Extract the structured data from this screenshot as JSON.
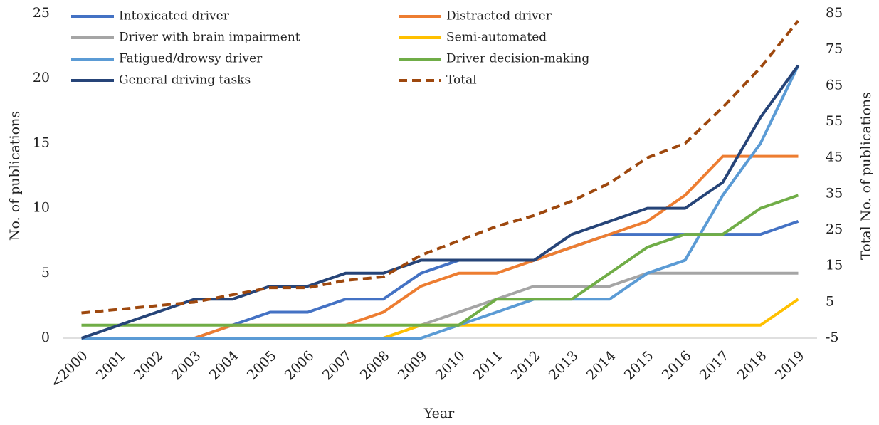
{
  "chart_data": {
    "type": "line",
    "x_label": "Year",
    "y_label": "No. of publications",
    "y2_label": "Total No. of publications",
    "categories": [
      "<2000",
      "2001",
      "2002",
      "2003",
      "2004",
      "2005",
      "2006",
      "2007",
      "2008",
      "2009",
      "2010",
      "2011",
      "2012",
      "2013",
      "2014",
      "2015",
      "2016",
      "2017",
      "2018",
      "2019"
    ],
    "ylim": [
      0,
      25
    ],
    "yticks": [
      0,
      5,
      10,
      15,
      20,
      25
    ],
    "y2lim": [
      -5,
      85
    ],
    "y2ticks": [
      -5,
      5,
      15,
      25,
      35,
      45,
      55,
      65,
      75,
      85
    ],
    "series": [
      {
        "name": "Intoxicated driver",
        "color": "#4472c4",
        "values": [
          0,
          0,
          0,
          0,
          1,
          2,
          2,
          3,
          3,
          5,
          6,
          6,
          6,
          7,
          8,
          8,
          8,
          8,
          8,
          9
        ]
      },
      {
        "name": "Distracted driver",
        "color": "#ed7d31",
        "values": [
          null,
          null,
          null,
          0,
          1,
          1,
          1,
          1,
          2,
          4,
          5,
          5,
          6,
          7,
          8,
          9,
          11,
          14,
          14,
          14
        ]
      },
      {
        "name": "Driver with brain impairment",
        "color": "#a5a5a5",
        "values": [
          0,
          0,
          0,
          0,
          0,
          0,
          0,
          0,
          0,
          1,
          2,
          3,
          4,
          4,
          4,
          5,
          5,
          5,
          5,
          5
        ]
      },
      {
        "name": "Semi-automated",
        "color": "#ffc000",
        "values": [
          null,
          null,
          null,
          null,
          null,
          null,
          null,
          null,
          0,
          1,
          1,
          1,
          1,
          1,
          1,
          1,
          1,
          1,
          1,
          3
        ]
      },
      {
        "name": "Fatigued/drowsy driver",
        "color": "#5b9bd5",
        "values": [
          0,
          0,
          0,
          0,
          0,
          0,
          0,
          0,
          0,
          0,
          1,
          2,
          3,
          3,
          3,
          5,
          6,
          11,
          15,
          21
        ]
      },
      {
        "name": "Driver decision-making",
        "color": "#70ad47",
        "values": [
          1,
          1,
          1,
          1,
          1,
          1,
          1,
          1,
          1,
          1,
          1,
          3,
          3,
          3,
          5,
          7,
          8,
          8,
          10,
          11
        ]
      },
      {
        "name": "General driving tasks",
        "color": "#264478",
        "values": [
          0,
          1,
          2,
          3,
          3,
          4,
          4,
          5,
          5,
          6,
          6,
          6,
          6,
          8,
          9,
          10,
          10,
          12,
          17,
          21
        ]
      },
      {
        "name": "Total",
        "color": "#9e480e",
        "dashed": true,
        "axis": "y2",
        "values": [
          2,
          3,
          4,
          5,
          7,
          9,
          9,
          11,
          12,
          18,
          22,
          26,
          29,
          33,
          38,
          45,
          49,
          59,
          70,
          83
        ]
      }
    ]
  }
}
